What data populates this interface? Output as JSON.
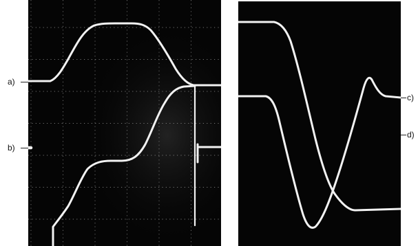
{
  "labels": {
    "a": "a)",
    "b": "b)",
    "c": "c)",
    "d": "d)"
  },
  "colors": {
    "screen": "#050505",
    "trace": "#f2f2f2",
    "grid": "#9a9a9a",
    "page": "#ffffff"
  }
}
